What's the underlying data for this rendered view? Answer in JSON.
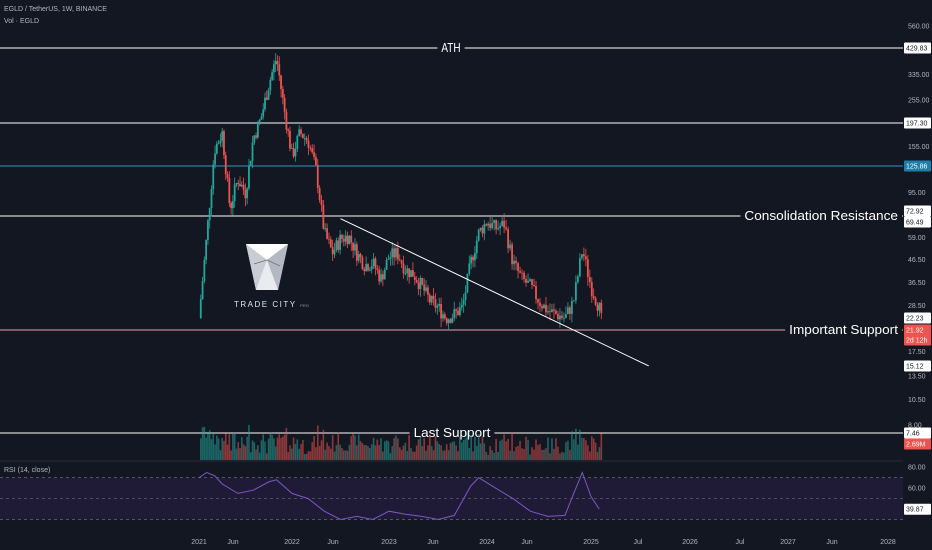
{
  "header": {
    "symbol_line": "EGLD / TetherUS, 1W, BINANCE",
    "volume_line": "Vol · EGLD",
    "rsi_line": "RSI (14, close)"
  },
  "logo": {
    "name": "TRADE CITY",
    "suffix": "PRO"
  },
  "colors": {
    "background": "#131722",
    "up": "#26a69a",
    "down": "#ef5350",
    "level_line": "#ffffff",
    "current_line": "#e8a0b0",
    "price_126_line": "#3a90c8",
    "rsi_line": "#7e57c2",
    "rsi_band": "#1f1b36"
  },
  "chart_data": [
    {
      "type": "candlestick",
      "title": "EGLD / TetherUS, 1W, BINANCE",
      "scale": "log",
      "xlabel": "",
      "ylabel": "",
      "x_ticks": [
        "2021",
        "Jun",
        "2022",
        "Jun",
        "2023",
        "Jun",
        "2024",
        "Jun",
        "2025",
        "Jul",
        "2026",
        "Jul",
        "2027",
        "Jun",
        "2028"
      ],
      "y_ticks": [
        560.0,
        335.0,
        255.0,
        155.0,
        95.0,
        59.0,
        46.5,
        36.5,
        28.5,
        17.5,
        13.5,
        10.5,
        8.0
      ],
      "price_labels": [
        {
          "value": "429.83",
          "style": "level"
        },
        {
          "value": "197.30",
          "style": "level"
        },
        {
          "value": "125.86",
          "style": "blue"
        },
        {
          "value": "72.92",
          "style": "level"
        },
        {
          "value": "69.49",
          "style": "level"
        },
        {
          "value": "22.23",
          "style": "level"
        },
        {
          "value": "21.92",
          "style": "current"
        },
        {
          "value": "2d 12h",
          "style": "current"
        },
        {
          "value": "15.12",
          "style": "level"
        },
        {
          "value": "7.46",
          "style": "level"
        },
        {
          "value": "2.69M",
          "style": "current"
        }
      ],
      "levels": [
        {
          "price": 429.83,
          "label": "ATH"
        },
        {
          "price": 197.3,
          "label": ""
        },
        {
          "price": 125.86,
          "label": ""
        },
        {
          "price": 71.0,
          "label": "Consolidation Resistance"
        },
        {
          "price": 22.23,
          "label": "Important Support"
        },
        {
          "price": 7.46,
          "label": "Last Support"
        }
      ],
      "trendline": {
        "from": [
          "2022-07",
          72
        ],
        "to": [
          "2025-08",
          15
        ]
      },
      "close_path": [
        [
          "2021-01",
          25
        ],
        [
          "2021-02",
          60
        ],
        [
          "2021-03",
          150
        ],
        [
          "2021-04",
          180
        ],
        [
          "2021-05",
          80
        ],
        [
          "2021-06",
          110
        ],
        [
          "2021-07",
          95
        ],
        [
          "2021-08",
          170
        ],
        [
          "2021-09",
          210
        ],
        [
          "2021-10",
          300
        ],
        [
          "2021-11",
          400
        ],
        [
          "2021-12",
          230
        ],
        [
          "2022-01",
          140
        ],
        [
          "2022-02",
          180
        ],
        [
          "2022-03",
          165
        ],
        [
          "2022-04",
          120
        ],
        [
          "2022-05",
          62
        ],
        [
          "2022-06",
          50
        ],
        [
          "2022-07",
          58
        ],
        [
          "2022-08",
          60
        ],
        [
          "2022-09",
          50
        ],
        [
          "2022-10",
          44
        ],
        [
          "2022-11",
          45
        ],
        [
          "2022-12",
          38
        ],
        [
          "2023-01",
          48
        ],
        [
          "2023-02",
          50
        ],
        [
          "2023-03",
          42
        ],
        [
          "2023-04",
          40
        ],
        [
          "2023-05",
          35
        ],
        [
          "2023-06",
          30
        ],
        [
          "2023-07",
          28
        ],
        [
          "2023-08",
          25
        ],
        [
          "2023-09",
          26
        ],
        [
          "2023-10",
          28
        ],
        [
          "2023-11",
          45
        ],
        [
          "2023-12",
          62
        ],
        [
          "2024-01",
          70
        ],
        [
          "2024-02",
          65
        ],
        [
          "2024-03",
          68
        ],
        [
          "2024-04",
          45
        ],
        [
          "2024-05",
          38
        ],
        [
          "2024-06",
          35
        ],
        [
          "2024-07",
          30
        ],
        [
          "2024-08",
          27
        ],
        [
          "2024-09",
          26
        ],
        [
          "2024-10",
          25
        ],
        [
          "2024-11",
          30
        ],
        [
          "2024-12",
          52
        ],
        [
          "2025-01",
          35
        ],
        [
          "2025-02",
          28
        ],
        [
          "2025-02-15",
          21.92
        ]
      ]
    },
    {
      "type": "line",
      "title": "RSI (14, close)",
      "y_ticks": [
        80.0,
        60.0
      ],
      "current_label": "39.87",
      "band": [
        30,
        70
      ],
      "values": [
        [
          "2021-01",
          70
        ],
        [
          "2021-02",
          75
        ],
        [
          "2021-03",
          72
        ],
        [
          "2021-04",
          64
        ],
        [
          "2021-06",
          55
        ],
        [
          "2021-08",
          58
        ],
        [
          "2021-10",
          66
        ],
        [
          "2021-11",
          68
        ],
        [
          "2022-01",
          55
        ],
        [
          "2022-03",
          50
        ],
        [
          "2022-05",
          38
        ],
        [
          "2022-07",
          30
        ],
        [
          "2022-09",
          33
        ],
        [
          "2022-11",
          30
        ],
        [
          "2023-01",
          38
        ],
        [
          "2023-03",
          35
        ],
        [
          "2023-05",
          33
        ],
        [
          "2023-07",
          30
        ],
        [
          "2023-09",
          34
        ],
        [
          "2023-11",
          62
        ],
        [
          "2023-12",
          70
        ],
        [
          "2024-02",
          60
        ],
        [
          "2024-04",
          50
        ],
        [
          "2024-06",
          38
        ],
        [
          "2024-08",
          33
        ],
        [
          "2024-10",
          34
        ],
        [
          "2024-11",
          55
        ],
        [
          "2024-12",
          75
        ],
        [
          "2025-01",
          52
        ],
        [
          "2025-02",
          40
        ]
      ]
    }
  ]
}
